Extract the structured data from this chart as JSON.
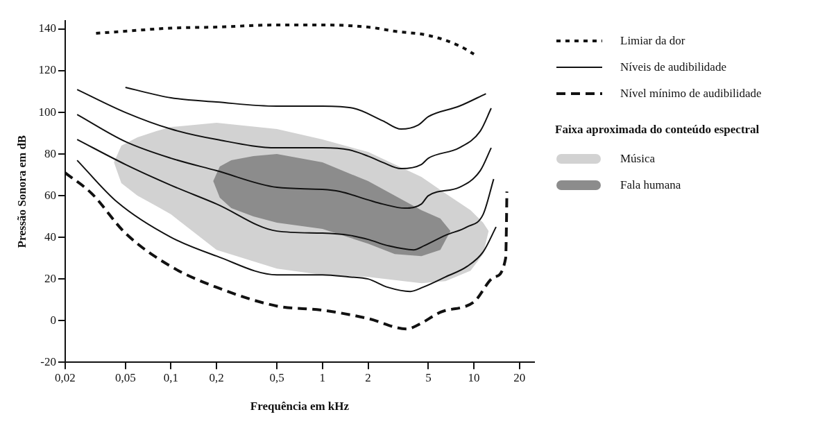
{
  "chart_data": {
    "type": "line",
    "xlabel": "Frequência em kHz",
    "ylabel": "Pressão Sonora em dB",
    "legend_title": "Faixa aproximada do conteúdo espectral",
    "legend": "right",
    "log": "x",
    "xlim": [
      0.02,
      25
    ],
    "ylim": [
      -20,
      144
    ],
    "xticks": [
      {
        "value": 0.02,
        "label": "0,02"
      },
      {
        "value": 0.05,
        "label": "0,05"
      },
      {
        "value": 0.1,
        "label": "0,1"
      },
      {
        "value": 0.2,
        "label": "0,2"
      },
      {
        "value": 0.5,
        "label": "0,5"
      },
      1,
      2,
      5,
      10,
      20
    ],
    "yticks": [
      -20,
      0,
      20,
      40,
      60,
      80,
      100,
      120,
      140
    ],
    "series": [
      {
        "name": "Limiar da dor",
        "color": "#111111",
        "line_style": "dotted",
        "x": [
          0.032,
          0.05,
          0.1,
          0.2,
          0.5,
          1,
          2,
          3,
          5,
          8,
          10
        ],
        "values": [
          138,
          139,
          140.5,
          141,
          142,
          142,
          141,
          139,
          137,
          132,
          128
        ]
      },
      {
        "name": "Níveis de audibilidade",
        "color": "#111111",
        "line_style": "solid",
        "x": [
          0.05,
          0.1,
          0.2,
          0.5,
          1,
          1.6,
          2.5,
          3.3,
          4.3,
          5,
          8,
          12
        ],
        "values": [
          112,
          107,
          105,
          103,
          103,
          102,
          96,
          92,
          94,
          98,
          103,
          109
        ]
      },
      {
        "color": "#111111",
        "line_style": "solid",
        "x": [
          0.024,
          0.05,
          0.1,
          0.2,
          0.5,
          1,
          1.5,
          2,
          2.5,
          3.3,
          4.5,
          5,
          8,
          11,
          13
        ],
        "values": [
          111,
          100,
          92,
          87,
          83,
          83,
          82,
          79,
          76,
          73,
          75,
          78,
          83,
          91,
          102
        ]
      },
      {
        "color": "#111111",
        "line_style": "solid",
        "x": [
          0.024,
          0.05,
          0.1,
          0.2,
          0.5,
          1,
          1.3,
          2,
          2.5,
          3.5,
          4.5,
          5,
          8,
          11,
          13
        ],
        "values": [
          99,
          86,
          78,
          72,
          64,
          63,
          62,
          58,
          56,
          54,
          56,
          60,
          64,
          72,
          83
        ]
      },
      {
        "color": "#111111",
        "line_style": "solid",
        "x": [
          0.024,
          0.05,
          0.1,
          0.2,
          0.5,
          1,
          1.5,
          2,
          2.7,
          4,
          4.7,
          6.5,
          9,
          11.5,
          13.5
        ],
        "values": [
          87,
          75,
          65,
          56,
          43,
          42,
          41,
          39,
          36,
          34,
          36,
          41,
          45,
          51,
          68
        ]
      },
      {
        "color": "#111111",
        "line_style": "solid",
        "x": [
          0.024,
          0.044,
          0.1,
          0.2,
          0.5,
          1,
          1.5,
          2,
          2.7,
          3.8,
          4.6,
          6.5,
          9,
          11.5,
          14
        ],
        "values": [
          77,
          57,
          40,
          31,
          22,
          22,
          21,
          20,
          16,
          14,
          16,
          21,
          26,
          33,
          45
        ]
      },
      {
        "name": "Nível mínimo de audibilidade",
        "color": "#111111",
        "line_style": "dashed",
        "x": [
          0.02,
          0.03,
          0.05,
          0.1,
          0.2,
          0.5,
          1,
          2,
          3.6,
          4.3,
          6,
          10,
          13.7,
          16.2,
          16.4,
          16.5
        ],
        "values": [
          71,
          61,
          42,
          26,
          16,
          7,
          5,
          1,
          -4,
          -2,
          4,
          9,
          21,
          30,
          47,
          62
        ]
      },
      {
        "name": "Música",
        "type": "area",
        "color": "#d2d2d2",
        "x": [
          0.042,
          0.047,
          0.06,
          0.08,
          0.1,
          0.2,
          0.5,
          1,
          2,
          4.5,
          6.5,
          9.5,
          11.5,
          12.5,
          11.5,
          9.5,
          6.5,
          4.5,
          2,
          1,
          0.5,
          0.2,
          0.1,
          0.08,
          0.06,
          0.047,
          0.042
        ],
        "values": [
          76,
          84,
          88,
          91,
          93,
          95,
          92,
          87,
          81,
          69,
          61,
          53,
          47,
          43,
          32,
          24,
          19,
          18,
          21,
          22,
          25,
          34,
          51,
          55,
          60,
          66,
          76
        ]
      },
      {
        "name": "Fala humana",
        "type": "area",
        "color": "#8c8c8c",
        "x": [
          0.19,
          0.21,
          0.25,
          0.35,
          0.5,
          1,
          2,
          3,
          4.5,
          6,
          7,
          6,
          4.5,
          3,
          2,
          1,
          0.5,
          0.35,
          0.25,
          0.21,
          0.19
        ],
        "values": [
          67,
          74,
          77,
          79,
          80,
          76,
          67,
          60,
          53,
          49,
          43,
          34,
          31,
          32,
          37,
          44,
          47,
          50,
          54,
          59,
          67
        ]
      }
    ]
  }
}
